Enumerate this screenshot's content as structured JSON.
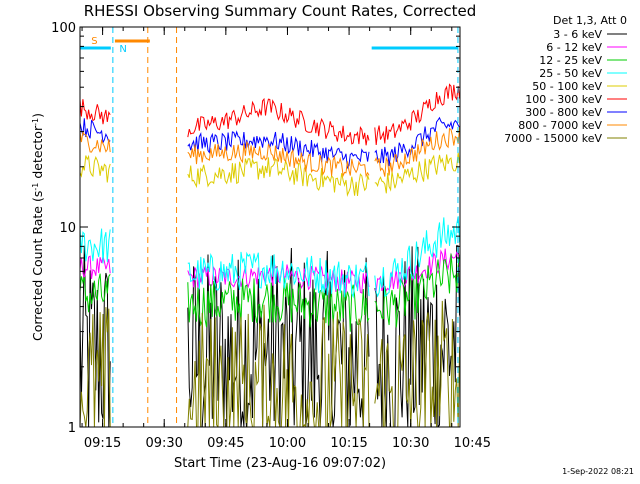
{
  "chart_data": {
    "type": "line",
    "title": "RHESSI Observing Summary Count Rates, Corrected",
    "xlabel": "Start Time (23-Aug-16 09:07:02)",
    "ylabel": "Corrected Count Rate (s⁻¹ detector⁻¹)",
    "y_scale": "log",
    "ylim": [
      1,
      100
    ],
    "x_range_minutes": [
      9.5,
      102.0
    ],
    "x_ticks": [
      {
        "label": "09:15",
        "min": 15
      },
      {
        "label": "09:30",
        "min": 30
      },
      {
        "label": "09:45",
        "min": 45
      },
      {
        "label": "10:00",
        "min": 60
      },
      {
        "label": "10:15",
        "min": 75
      },
      {
        "label": "10:30",
        "min": 90
      },
      {
        "label": "10:45",
        "min": 105
      }
    ],
    "y_ticks": [
      {
        "label": "1",
        "v": 1
      },
      {
        "label": "10",
        "v": 10
      },
      {
        "label": "100",
        "v": 100
      }
    ],
    "legend_header": "Det 1,3, Att 0",
    "legend_position": "top-right outside",
    "data_gaps_minutes": [
      [
        17.0,
        35.5
      ],
      [
        80.0,
        81.0
      ]
    ],
    "series": [
      {
        "name": "3 - 6 keV",
        "color": "#000000",
        "x": [
          9.5,
          16.5,
          36,
          45,
          55,
          65,
          75,
          85,
          92,
          96,
          101.5
        ],
        "y": [
          2.3,
          2.3,
          2.2,
          2.2,
          2.3,
          2.2,
          2.1,
          2.2,
          2.4,
          2.6,
          2.7
        ]
      },
      {
        "name": "6 - 12 keV",
        "color": "#ff00ff",
        "x": [
          9.5,
          16.5,
          36,
          45,
          55,
          65,
          75,
          85,
          92,
          96,
          101.5
        ],
        "y": [
          6.3,
          6.2,
          5.6,
          5.6,
          5.8,
          5.6,
          5.3,
          5.4,
          6.0,
          6.6,
          7.2
        ]
      },
      {
        "name": "12 - 25 keV",
        "color": "#00cc00",
        "x": [
          9.5,
          16.5,
          36,
          45,
          55,
          65,
          75,
          85,
          92,
          96,
          101.5
        ],
        "y": [
          4.6,
          4.5,
          4.1,
          4.2,
          4.4,
          4.1,
          3.9,
          4.0,
          4.6,
          5.3,
          5.8
        ]
      },
      {
        "name": "25 - 50 keV",
        "color": "#00ffff",
        "x": [
          9.5,
          16.5,
          36,
          45,
          55,
          65,
          75,
          85,
          92,
          96,
          101.5
        ],
        "y": [
          8.3,
          8.0,
          5.8,
          5.9,
          6.3,
          5.9,
          5.5,
          5.7,
          7.2,
          8.6,
          9.6
        ]
      },
      {
        "name": "50 - 100 keV",
        "color": "#ddcc00",
        "x": [
          9.5,
          16.5,
          36,
          45,
          55,
          65,
          75,
          85,
          92,
          96,
          101.5
        ],
        "y": [
          20.5,
          19.0,
          18.0,
          18.6,
          19.8,
          17.8,
          16.3,
          16.6,
          19.0,
          20.3,
          21.5
        ]
      },
      {
        "name": "100 - 300 keV",
        "color": "#ff0000",
        "x": [
          9.5,
          16.5,
          36,
          45,
          55,
          65,
          75,
          85,
          92,
          96,
          101.5
        ],
        "y": [
          40.0,
          35.0,
          31.0,
          34.0,
          40.0,
          33.0,
          28.5,
          29.0,
          36.0,
          44.0,
          49.0
        ]
      },
      {
        "name": "300 - 800 keV",
        "color": "#0000ff",
        "x": [
          9.5,
          16.5,
          36,
          45,
          55,
          65,
          75,
          85,
          92,
          96,
          101.5
        ],
        "y": [
          32.0,
          29.0,
          26.0,
          26.5,
          27.5,
          24.5,
          22.0,
          22.5,
          27.0,
          31.0,
          33.0
        ]
      },
      {
        "name": "800 - 7000 keV",
        "color": "#ff8800",
        "x": [
          9.5,
          16.5,
          36,
          45,
          55,
          65,
          75,
          85,
          92,
          96,
          101.5
        ],
        "y": [
          27.5,
          25.0,
          23.0,
          23.5,
          24.0,
          21.0,
          19.5,
          20.0,
          24.0,
          27.0,
          29.0
        ]
      },
      {
        "name": "7000 - 15000 keV",
        "color": "#808000",
        "x": [
          9.5,
          16.5,
          36,
          45,
          55,
          65,
          75,
          85,
          92,
          96,
          101.5
        ],
        "y": [
          1.5,
          1.5,
          1.4,
          1.4,
          1.5,
          1.4,
          1.4,
          1.4,
          1.5,
          1.6,
          1.6
        ]
      }
    ],
    "annotations": {
      "saa_label": "S",
      "night_label": "N",
      "saa_color": "#ff8800",
      "night_color": "#00ccff",
      "saa_bars_minutes": [
        [
          18.0,
          26.5
        ]
      ],
      "night_bars_minutes": [
        [
          9.5,
          17.0
        ],
        [
          80.5,
          101.5
        ]
      ],
      "saa_boundaries_minutes": [
        26.0,
        33.0
      ],
      "night_boundaries_minutes": [
        17.5,
        101.5
      ]
    }
  },
  "footer": {
    "date": "1-Sep-2022 08:21"
  }
}
